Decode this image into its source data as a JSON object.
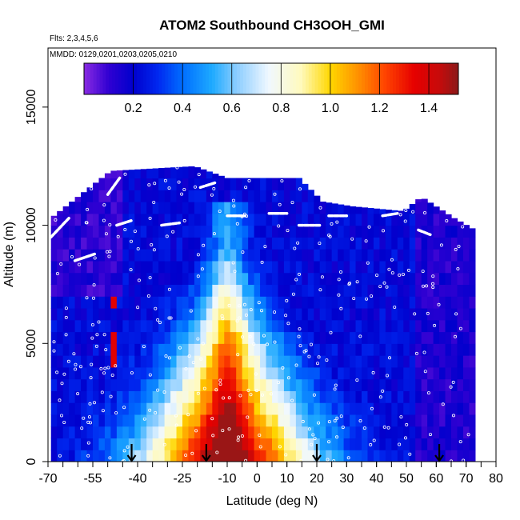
{
  "chart_data": {
    "type": "heatmap",
    "title": "ATOM2 Southbound CH3OOH_GMI",
    "flights_label": "Flts: 2,3,4,5,6",
    "dates_label": "MMDD: 0129,0201,0203,0205,0210",
    "xlabel": "Latitude (deg N)",
    "ylabel": "Altitude (m)",
    "xlim": [
      -70,
      80
    ],
    "ylim": [
      0,
      17500
    ],
    "x_ticks": [
      -70,
      -55,
      -40,
      -25,
      -10,
      0,
      10,
      20,
      30,
      40,
      50,
      60,
      70,
      80
    ],
    "x_tick_labels": [
      "-70",
      "-55",
      "-40",
      "-25",
      "-10",
      "0",
      "10",
      "20",
      "30",
      "40",
      "50",
      "60",
      "70",
      "80"
    ],
    "y_ticks": [
      0,
      5000,
      10000,
      15000
    ],
    "y_tick_labels": [
      "0",
      "5000",
      "10000",
      "15000"
    ],
    "colorbar": {
      "range": [
        0.0,
        1.52
      ],
      "ticks": [
        0.2,
        0.4,
        0.6,
        0.8,
        1.0,
        1.2,
        1.4
      ],
      "tick_labels": [
        "0.2",
        "0.4",
        "0.6",
        "0.8",
        "1.0",
        "1.2",
        "1.4"
      ],
      "colors": [
        "#8a2be2",
        "#0000cd",
        "#1e90ff",
        "#f0f8ff",
        "#ffd700",
        "#ff4500",
        "#e00000",
        "#8b1a1a"
      ]
    },
    "profile_markers_latitude": [
      -42,
      -17,
      20,
      61
    ],
    "field_description_values": {
      "altitude_top_by_latitude": [
        {
          "lat": -69,
          "top": 10300
        },
        {
          "lat": -49,
          "top": 12300
        },
        {
          "lat": -21,
          "top": 12500
        },
        {
          "lat": -10,
          "top": 12000
        },
        {
          "lat": 14,
          "top": 12000
        },
        {
          "lat": 22,
          "top": 11000
        },
        {
          "lat": 32,
          "top": 10800
        },
        {
          "lat": 49,
          "top": 10600
        },
        {
          "lat": 55,
          "top": 11200
        },
        {
          "lat": 66,
          "top": 10300
        },
        {
          "lat": 73,
          "top": 9800
        }
      ]
    }
  }
}
